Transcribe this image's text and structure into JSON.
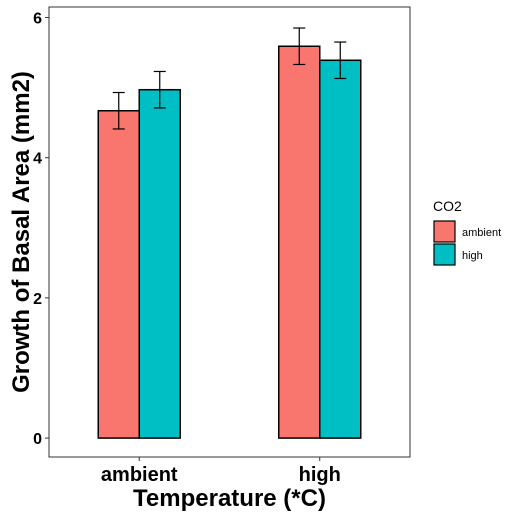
{
  "chart_data": {
    "type": "bar",
    "xlabel": "Temperature (*C)",
    "ylabel": "Growth of Basal Area (mm2)",
    "categories": [
      "ambient",
      "high"
    ],
    "series": [
      {
        "name": "ambient",
        "color": "#F8766D",
        "values": [
          4.67,
          5.59
        ],
        "error": [
          0.26,
          0.26
        ]
      },
      {
        "name": "high",
        "color": "#00BFC4",
        "values": [
          4.97,
          5.39
        ],
        "error": [
          0.26,
          0.26
        ]
      }
    ],
    "ylim": [
      -0.27,
      6.15
    ],
    "yticks": [
      0,
      2,
      4,
      6
    ],
    "grid": false,
    "legend": {
      "title": "CO2",
      "position": "right"
    }
  }
}
